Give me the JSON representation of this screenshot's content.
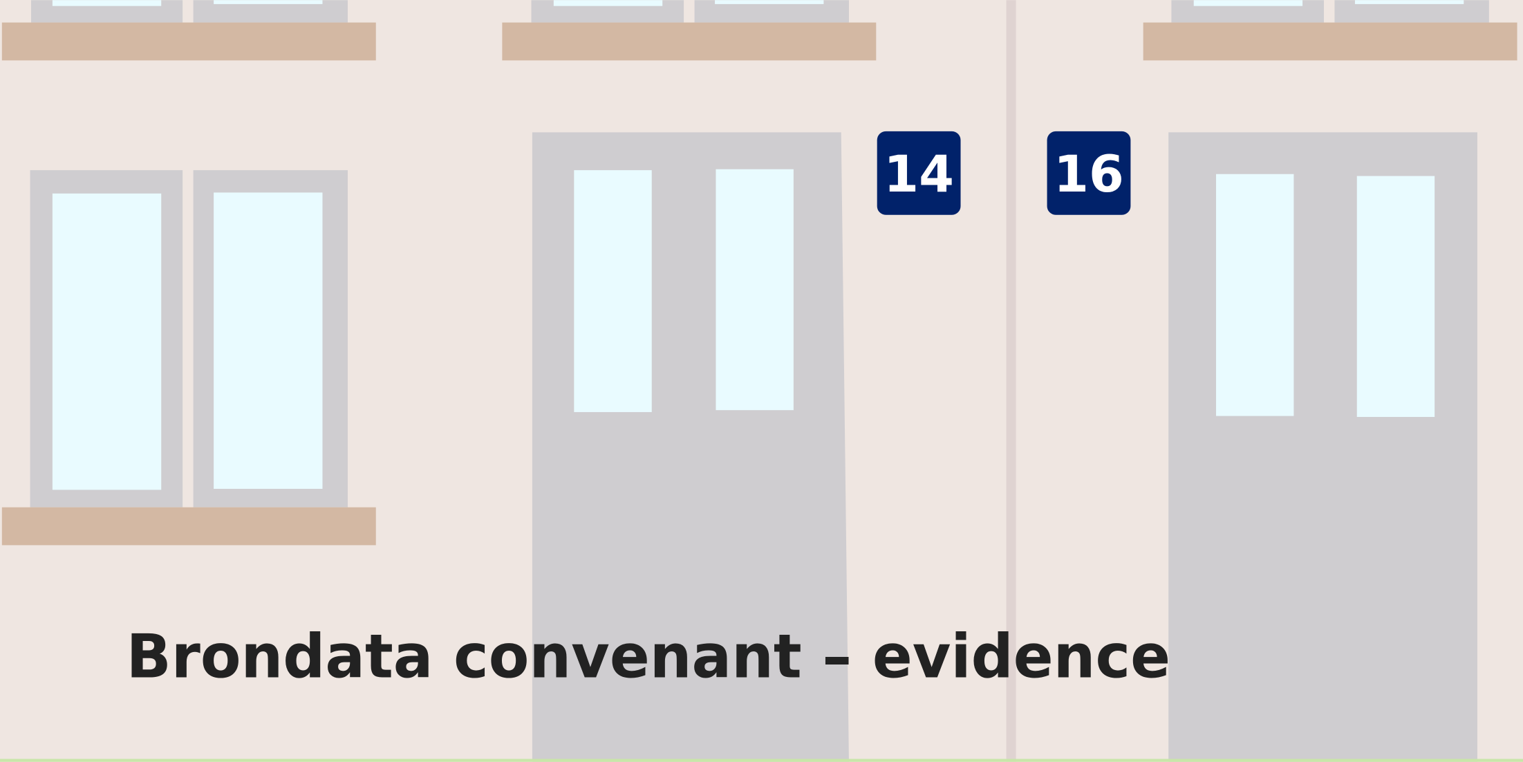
{
  "house_numbers": [
    "14",
    "16"
  ],
  "caption": "Brondata convenant – evidence"
}
